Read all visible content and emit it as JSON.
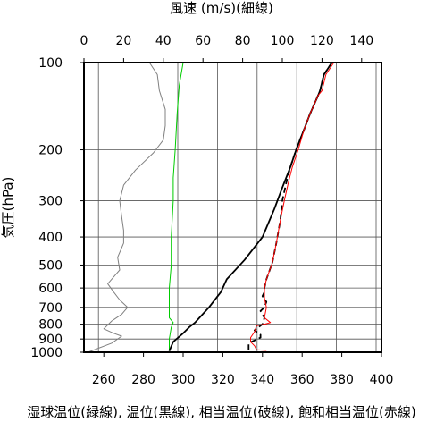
{
  "chart_data": {
    "type": "line",
    "top_axis_label": "風速 (m/s)(細線)",
    "bottom_axis_label": "湿球温位(緑線), 温位(黒線), 相当温位(破線), 飽和相当温位(赤線)",
    "left_axis_label": "気圧(hPa)",
    "top_ticks": [
      0,
      20,
      40,
      60,
      80,
      100,
      120,
      140
    ],
    "bottom_ticks": [
      260,
      280,
      300,
      320,
      340,
      360,
      380,
      400
    ],
    "left_ticks": [
      100,
      200,
      300,
      400,
      500,
      600,
      700,
      800,
      900,
      1000
    ],
    "top_range": [
      0,
      150
    ],
    "bottom_range": [
      250,
      400
    ],
    "pressure_range": [
      100,
      1000
    ],
    "pressure_scale": "log",
    "grid": true,
    "series": [
      {
        "key": "wind",
        "color": "#808080",
        "axis": "top",
        "points": [
          [
            2,
            1000
          ],
          [
            14,
            930
          ],
          [
            19,
            880
          ],
          [
            15,
            860
          ],
          [
            10,
            830
          ],
          [
            14,
            780
          ],
          [
            19,
            740
          ],
          [
            22,
            700
          ],
          [
            18,
            660
          ],
          [
            15,
            620
          ],
          [
            12,
            580
          ],
          [
            18,
            520
          ],
          [
            17,
            470
          ],
          [
            20,
            420
          ],
          [
            20,
            380
          ],
          [
            19,
            340
          ],
          [
            18,
            300
          ],
          [
            20,
            265
          ],
          [
            26,
            235
          ],
          [
            35,
            205
          ],
          [
            40,
            185
          ],
          [
            41,
            165
          ],
          [
            41,
            145
          ],
          [
            38,
            125
          ],
          [
            37,
            110
          ],
          [
            33,
            100
          ]
        ]
      },
      {
        "key": "wet_bulb_theta",
        "color": "#00cc00",
        "axis": "bottom",
        "points": [
          [
            293,
            990
          ],
          [
            293,
            900
          ],
          [
            294,
            820
          ],
          [
            295,
            790
          ],
          [
            293,
            760
          ],
          [
            293,
            700
          ],
          [
            293,
            600
          ],
          [
            294,
            500
          ],
          [
            294,
            400
          ],
          [
            295,
            300
          ],
          [
            295,
            250
          ],
          [
            296,
            200
          ],
          [
            297,
            150
          ],
          [
            298,
            120
          ],
          [
            300,
            100
          ]
        ]
      },
      {
        "key": "theta",
        "color": "#000000",
        "axis": "bottom",
        "points": [
          [
            293,
            990
          ],
          [
            295,
            920
          ],
          [
            300,
            860
          ],
          [
            303,
            820
          ],
          [
            306,
            790
          ],
          [
            309,
            750
          ],
          [
            313,
            700
          ],
          [
            319,
            620
          ],
          [
            322,
            560
          ],
          [
            331,
            480
          ],
          [
            340,
            400
          ],
          [
            346,
            320
          ],
          [
            350,
            270
          ],
          [
            354,
            230
          ],
          [
            357,
            200
          ],
          [
            361,
            170
          ],
          [
            364,
            150
          ],
          [
            366,
            140
          ],
          [
            368,
            130
          ],
          [
            369,
            125
          ],
          [
            371,
            110
          ],
          [
            375,
            100
          ]
        ]
      },
      {
        "key": "theta_e",
        "color": "#000000",
        "dashed": true,
        "axis": "bottom",
        "points": [
          [
            333,
            980
          ],
          [
            333,
            930
          ],
          [
            336,
            910
          ],
          [
            339,
            890
          ],
          [
            339,
            870
          ],
          [
            336,
            840
          ],
          [
            340,
            800
          ],
          [
            341,
            760
          ],
          [
            340,
            740
          ],
          [
            339,
            720
          ],
          [
            341,
            700
          ],
          [
            342,
            670
          ],
          [
            340,
            640
          ],
          [
            341,
            620
          ],
          [
            341,
            600
          ],
          [
            342,
            560
          ],
          [
            345,
            490
          ],
          [
            347,
            420
          ],
          [
            349,
            350
          ],
          [
            350,
            300
          ],
          [
            352,
            260
          ],
          [
            354,
            230
          ],
          [
            357,
            200
          ],
          [
            361,
            170
          ],
          [
            364,
            150
          ],
          [
            366,
            140
          ],
          [
            368,
            130
          ],
          [
            369,
            125
          ],
          [
            371,
            110
          ],
          [
            375,
            100
          ]
        ]
      },
      {
        "key": "theta_es",
        "color": "#ff0000",
        "axis": "bottom",
        "points": [
          [
            342,
            985
          ],
          [
            337,
            980
          ],
          [
            336,
            950
          ],
          [
            334,
            920
          ],
          [
            334,
            890
          ],
          [
            336,
            850
          ],
          [
            337,
            810
          ],
          [
            341,
            800
          ],
          [
            344,
            790
          ],
          [
            341,
            760
          ],
          [
            342,
            700
          ],
          [
            341,
            650
          ],
          [
            341,
            600
          ],
          [
            342,
            560
          ],
          [
            345,
            490
          ],
          [
            347,
            420
          ],
          [
            349,
            350
          ],
          [
            351,
            300
          ],
          [
            353,
            260
          ],
          [
            355,
            230
          ],
          [
            358,
            200
          ],
          [
            361,
            170
          ],
          [
            364,
            150
          ],
          [
            366,
            140
          ],
          [
            368,
            130
          ],
          [
            370,
            125
          ],
          [
            372,
            110
          ],
          [
            376,
            100
          ]
        ]
      }
    ]
  }
}
